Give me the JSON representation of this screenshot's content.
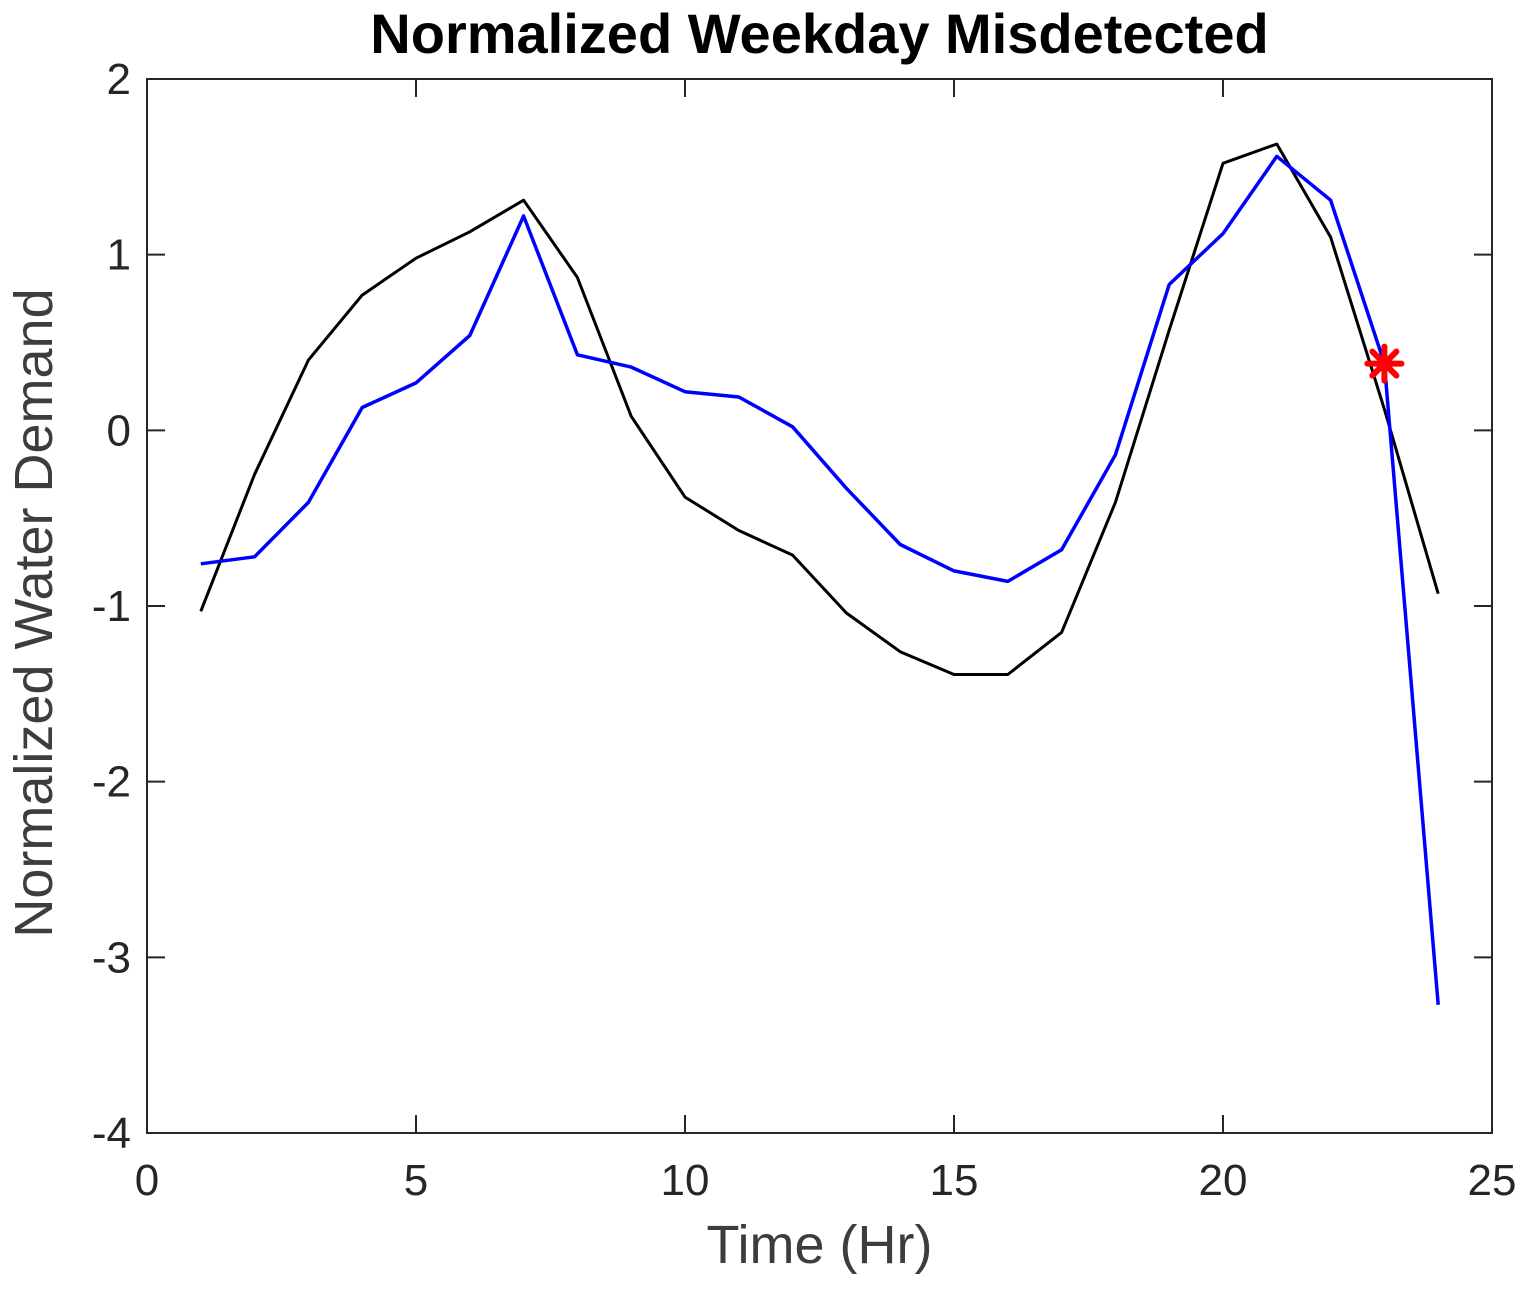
{
  "figure": {
    "title": "Normalized Weekday Misdetected",
    "xlabel": "Time (Hr)",
    "ylabel": "Normalized Water Demand"
  },
  "chart_data": {
    "type": "line",
    "title": "Normalized Weekday Misdetected",
    "xlabel": "Time (Hr)",
    "ylabel": "Normalized Water Demand",
    "xlim": [
      0,
      25
    ],
    "ylim": [
      -4,
      2
    ],
    "xticks": [
      0,
      5,
      10,
      15,
      20,
      25
    ],
    "yticks": [
      -4,
      -3,
      -2,
      -1,
      0,
      1,
      2
    ],
    "grid": false,
    "box": true,
    "legend": "none",
    "x": [
      1,
      2,
      3,
      4,
      5,
      6,
      7,
      8,
      9,
      10,
      11,
      12,
      13,
      14,
      15,
      16,
      17,
      18,
      19,
      20,
      21,
      22,
      23,
      24
    ],
    "series": [
      {
        "name": "black-curve",
        "color": "#000000",
        "line_width": 3,
        "values": [
          -1.03,
          -0.25,
          0.4,
          0.77,
          0.98,
          1.13,
          1.31,
          0.87,
          0.08,
          -0.38,
          -0.57,
          -0.71,
          -1.04,
          -1.26,
          -1.39,
          -1.39,
          -1.15,
          -0.41,
          0.57,
          1.52,
          1.63,
          1.1,
          0.12,
          -0.93
        ]
      },
      {
        "name": "blue-curve",
        "color": "#0000FF",
        "line_width": 3.5,
        "values": [
          -0.76,
          -0.72,
          -0.41,
          0.13,
          0.27,
          0.54,
          1.22,
          0.43,
          0.36,
          0.22,
          0.19,
          0.02,
          -0.33,
          -0.65,
          -0.8,
          -0.86,
          -0.68,
          -0.14,
          0.83,
          1.12,
          1.56,
          1.31,
          0.38,
          -3.27
        ]
      }
    ],
    "marker": {
      "name": "misdetected-point-marker",
      "symbol": "asterisk",
      "color": "#FF0000",
      "x": 23,
      "y": 0.38,
      "size": 17,
      "stroke_width": 6
    },
    "frame_color": "#262626",
    "tick_label_color": "#262626",
    "tick_font_size": 44,
    "tick_length": 18
  }
}
